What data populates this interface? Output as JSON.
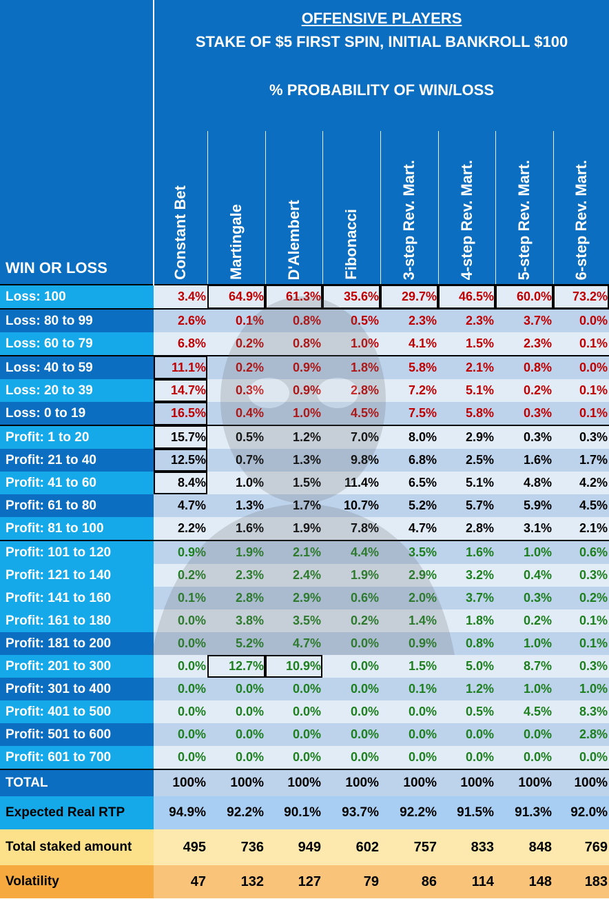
{
  "header": {
    "title": "OFFENSIVE PLAYERS",
    "subtitle": "STAKE OF $5 FIRST SPIN, INITIAL BANKROLL $100",
    "subtitle2": "% PROBABILITY OF WIN/LOSS",
    "corner_label": "WIN OR LOSS"
  },
  "columns": [
    "Constant Bet",
    "Martingale",
    "D'Alembert",
    "Fibonacci",
    "3-step Rev. Mart.",
    "4-step Rev. Mart.",
    "5-step Rev. Mart.",
    "6-step Rev. Mart."
  ],
  "rows": [
    {
      "label": "Loss: 100",
      "values": [
        "3.4%",
        "64.9%",
        "61.3%",
        "35.6%",
        "29.7%",
        "46.5%",
        "60.0%",
        "73.2%"
      ]
    },
    {
      "label": "Loss: 80 to 99",
      "values": [
        "2.6%",
        "0.1%",
        "0.8%",
        "0.5%",
        "2.3%",
        "2.3%",
        "3.7%",
        "0.0%"
      ]
    },
    {
      "label": "Loss: 60 to 79",
      "values": [
        "6.8%",
        "0.2%",
        "0.8%",
        "1.0%",
        "4.1%",
        "1.5%",
        "2.3%",
        "0.1%"
      ]
    },
    {
      "label": "Loss: 40 to 59",
      "values": [
        "11.1%",
        "0.2%",
        "0.9%",
        "1.8%",
        "5.8%",
        "2.1%",
        "0.8%",
        "0.0%"
      ]
    },
    {
      "label": "Loss: 20 to 39",
      "values": [
        "14.7%",
        "0.3%",
        "0.9%",
        "2.8%",
        "7.2%",
        "5.1%",
        "0.2%",
        "0.1%"
      ]
    },
    {
      "label": "Loss: 0 to 19",
      "values": [
        "16.5%",
        "0.4%",
        "1.0%",
        "4.5%",
        "7.5%",
        "5.8%",
        "0.3%",
        "0.1%"
      ]
    },
    {
      "label": "Profit: 1 to 20",
      "values": [
        "15.7%",
        "0.5%",
        "1.2%",
        "7.0%",
        "8.0%",
        "2.9%",
        "0.3%",
        "0.3%"
      ]
    },
    {
      "label": "Profit: 21 to 40",
      "values": [
        "12.5%",
        "0.7%",
        "1.3%",
        "9.8%",
        "6.8%",
        "2.5%",
        "1.6%",
        "1.7%"
      ]
    },
    {
      "label": "Profit: 41 to 60",
      "values": [
        "8.4%",
        "1.0%",
        "1.5%",
        "11.4%",
        "6.5%",
        "5.1%",
        "4.8%",
        "4.2%"
      ]
    },
    {
      "label": "Profit: 61 to 80",
      "values": [
        "4.7%",
        "1.3%",
        "1.7%",
        "10.7%",
        "5.2%",
        "5.7%",
        "5.9%",
        "4.5%"
      ]
    },
    {
      "label": "Profit: 81 to 100",
      "values": [
        "2.2%",
        "1.6%",
        "1.9%",
        "7.8%",
        "4.7%",
        "2.8%",
        "3.1%",
        "2.1%"
      ]
    },
    {
      "label": "Profit: 101 to 120",
      "values": [
        "0.9%",
        "1.9%",
        "2.1%",
        "4.4%",
        "3.5%",
        "1.6%",
        "1.0%",
        "0.6%"
      ]
    },
    {
      "label": "Profit: 121 to 140",
      "values": [
        "0.2%",
        "2.3%",
        "2.4%",
        "1.9%",
        "2.9%",
        "3.2%",
        "0.4%",
        "0.3%"
      ]
    },
    {
      "label": "Profit: 141 to 160",
      "values": [
        "0.1%",
        "2.8%",
        "2.9%",
        "0.6%",
        "2.0%",
        "3.7%",
        "0.3%",
        "0.2%"
      ]
    },
    {
      "label": "Profit: 161 to 180",
      "values": [
        "0.0%",
        "3.8%",
        "3.5%",
        "0.2%",
        "1.4%",
        "1.8%",
        "0.2%",
        "0.1%"
      ]
    },
    {
      "label": "Profit: 181 to 200",
      "values": [
        "0.0%",
        "5.2%",
        "4.7%",
        "0.0%",
        "0.9%",
        "0.8%",
        "1.0%",
        "0.1%"
      ]
    },
    {
      "label": "Profit: 201 to 300",
      "values": [
        "0.0%",
        "12.7%",
        "10.9%",
        "0.0%",
        "1.5%",
        "5.0%",
        "8.7%",
        "0.3%"
      ]
    },
    {
      "label": "Profit: 301 to 400",
      "values": [
        "0.0%",
        "0.0%",
        "0.0%",
        "0.0%",
        "0.1%",
        "1.2%",
        "1.0%",
        "1.0%"
      ]
    },
    {
      "label": "Profit: 401 to 500",
      "values": [
        "0.0%",
        "0.0%",
        "0.0%",
        "0.0%",
        "0.0%",
        "0.5%",
        "4.5%",
        "8.3%"
      ]
    },
    {
      "label": "Profit: 501 to 600",
      "values": [
        "0.0%",
        "0.0%",
        "0.0%",
        "0.0%",
        "0.0%",
        "0.0%",
        "0.0%",
        "2.8%"
      ]
    },
    {
      "label": "Profit: 601 to 700",
      "values": [
        "0.0%",
        "0.0%",
        "0.0%",
        "0.0%",
        "0.0%",
        "0.0%",
        "0.0%",
        "0.0%"
      ]
    }
  ],
  "total": {
    "label": "TOTAL",
    "values": [
      "100%",
      "100%",
      "100%",
      "100%",
      "100%",
      "100%",
      "100%",
      "100%"
    ]
  },
  "rtp": {
    "label": "Expected Real RTP",
    "values": [
      "94.9%",
      "92.2%",
      "90.1%",
      "93.7%",
      "92.2%",
      "91.5%",
      "91.3%",
      "92.0%"
    ]
  },
  "staked": {
    "label": "Total staked amount",
    "values": [
      "495",
      "736",
      "949",
      "602",
      "757",
      "833",
      "848",
      "769"
    ]
  },
  "volatility": {
    "label": "Volatility",
    "values": [
      "47",
      "132",
      "127",
      "79",
      "86",
      "114",
      "148",
      "183"
    ]
  },
  "colors": {
    "loss": "#c00000",
    "mid": "#000000",
    "profit": "#1d7f1d",
    "header_blue": "#0b6ec0",
    "label_light": "#15a9ea"
  }
}
